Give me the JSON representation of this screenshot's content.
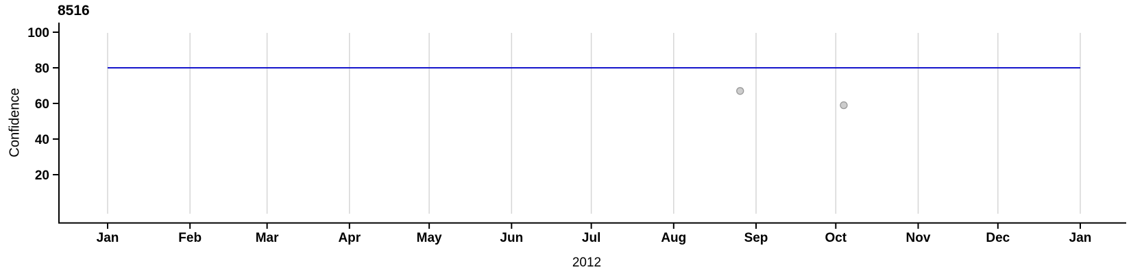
{
  "figure": {
    "title": "8516"
  },
  "chart_data": {
    "type": "scatter",
    "title": "8516",
    "xlabel": "2012",
    "ylabel": "Confidence",
    "x_tick_labels": [
      "Jan",
      "Feb",
      "Mar",
      "Apr",
      "May",
      "Jun",
      "Jul",
      "Aug",
      "Sep",
      "Oct",
      "Nov",
      "Dec",
      "Jan"
    ],
    "x_axis_span_days": 366,
    "y_ticks": [
      20,
      40,
      60,
      80,
      100
    ],
    "ylim": [
      -7,
      105
    ],
    "grid": "vertical lines at each month start",
    "legend": "none",
    "reference_line": {
      "orientation": "horizontal",
      "value": 80,
      "extent": "Jan to Jan",
      "color": "#1414cc"
    },
    "points": [
      {
        "x_day_of_year": 238,
        "x_approx": "late Aug",
        "y": 67
      },
      {
        "x_day_of_year": 277,
        "x_approx": "early Oct",
        "y": 59
      }
    ],
    "point_style": {
      "fill": "#cdcdcd",
      "stroke": "#999999"
    },
    "colors": {
      "axis": "#000000",
      "gridline": "#d6d6d6",
      "tick_text": "#000000",
      "background": "#ffffff"
    }
  }
}
